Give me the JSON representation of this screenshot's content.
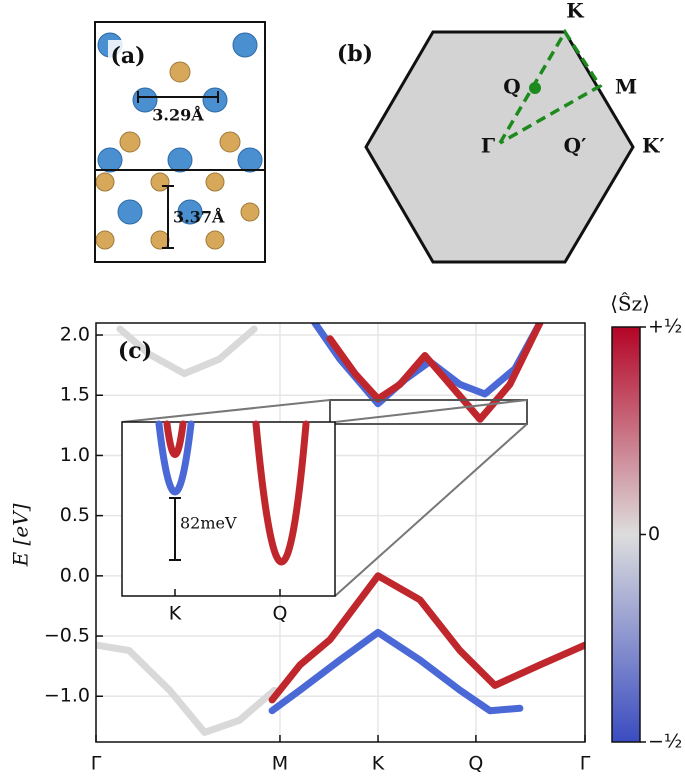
{
  "structure": {
    "panel_label": "(a)",
    "lattice_constant": "3.29Å",
    "thickness": "3.37Å"
  },
  "brillouin_zone": {
    "panel_label": "(b)",
    "points": [
      "K",
      "M",
      "Q",
      "Γ",
      "Q′",
      "K′"
    ]
  },
  "chart_data": {
    "type": "line",
    "panel_label": "(c)",
    "y_label": "E [eV]",
    "xlim": [
      0,
      2.658
    ],
    "ylim": [
      -1.38,
      2.1
    ],
    "xticks": [
      {
        "value": 0,
        "label": "Γ"
      },
      {
        "value": 1.0,
        "label": "M"
      },
      {
        "value": 1.533,
        "label": "K"
      },
      {
        "value": 2.065,
        "label": "Q"
      },
      {
        "value": 2.658,
        "label": "Γ"
      }
    ],
    "yticks": [
      {
        "value": -1.0,
        "label": "−1.0"
      },
      {
        "value": -0.5,
        "label": "−0.5"
      },
      {
        "value": 0,
        "label": "0.0"
      },
      0.5,
      {
        "value": 1.0,
        "label": "1.0"
      },
      1.5,
      {
        "value": 2.0,
        "label": "2.0"
      }
    ],
    "grid": true,
    "series": [
      {
        "color": "#d9d9d9",
        "x": [
          0.13,
          0.29,
          0.48,
          0.67,
          0.86
        ],
        "values": [
          2.05,
          1.84,
          1.68,
          1.8,
          2.05
        ]
      },
      {
        "color": "#d9d9d9",
        "x": [
          0,
          0.18,
          0.4,
          0.59,
          0.78,
          0.97
        ],
        "values": [
          -0.575,
          -0.62,
          -0.95,
          -1.3,
          -1.2,
          -0.95
        ]
      },
      {
        "color": "#4a68d6",
        "x": [
          1.19,
          1.326,
          1.533,
          1.679,
          1.815,
          1.978,
          2.114,
          2.277,
          2.413
        ],
        "values": [
          2.1,
          1.8,
          1.43,
          1.63,
          1.78,
          1.59,
          1.51,
          1.72,
          2.1
        ]
      },
      {
        "color": "#c0272d",
        "x": [
          1.272,
          1.408,
          1.533,
          1.652,
          1.788,
          1.924,
          2.087,
          2.25,
          2.413
        ],
        "values": [
          1.97,
          1.68,
          1.47,
          1.59,
          1.83,
          1.59,
          1.3,
          1.59,
          2.1
        ]
      },
      {
        "color": "#4a68d6",
        "x": [
          0.957,
          1.109,
          1.326,
          1.533,
          1.761,
          1.978,
          2.141,
          2.304
        ],
        "values": [
          -1.12,
          -0.95,
          -0.7,
          -0.47,
          -0.7,
          -0.95,
          -1.12,
          -1.1
        ]
      },
      {
        "color": "#c0272d",
        "x": [
          0.957,
          1.109,
          1.272,
          1.533,
          1.761,
          1.978,
          2.168,
          2.413,
          2.658
        ],
        "values": [
          -1.03,
          -0.74,
          -0.53,
          0.0,
          -0.2,
          -0.62,
          -0.91,
          -0.74,
          -0.575
        ]
      }
    ],
    "inset": {
      "categories": [
        "K",
        "Q"
      ],
      "annotation": "82meV"
    },
    "colorbar": {
      "label": "⟨Ŝz⟩",
      "lim": [
        -0.5,
        0.5
      ],
      "colors": [
        "#3a4cc0",
        "#dddddd",
        "#b40426"
      ],
      "ticks": [
        {
          "value": 0.5,
          "label": "+½"
        },
        0,
        {
          "value": -0.5,
          "label": "−½"
        }
      ]
    }
  }
}
